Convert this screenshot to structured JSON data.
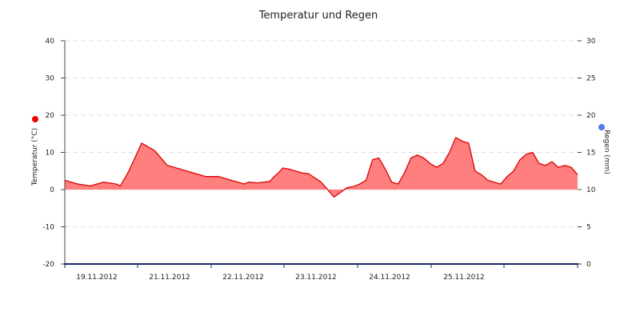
{
  "chart_data": {
    "type": "area",
    "title": "Temperatur und Regen",
    "x_type": "date",
    "x_tick_labels": [
      "19.11.2012",
      "21.11.2012",
      "22.11.2012",
      "23.11.2012",
      "24.11.2012",
      "25.11.2012"
    ],
    "y_left": {
      "label": "Temperatur (°C)",
      "range": [
        -20,
        40
      ],
      "ticks": [
        -20,
        -10,
        0,
        10,
        20,
        30,
        40
      ]
    },
    "y_right": {
      "label": "Regen (mm)",
      "range": [
        0,
        30
      ],
      "ticks": [
        0,
        5,
        10,
        15,
        20,
        25,
        30
      ]
    },
    "grid": true,
    "colors": {
      "temperature_line": "#dd0000",
      "temperature_fill": "#ff7f7f",
      "temperature_marker": "#ee0000",
      "rain_marker": "#4d7ee8",
      "x_axis": "#1a2766",
      "grid": "#dddddd"
    },
    "series": [
      {
        "axis": "left",
        "x": [
          "2012-11-18 12:00",
          "2012-11-18 18:00",
          "2012-11-19 00:00",
          "2012-11-19 06:00",
          "2012-11-19 12:00",
          "2012-11-19 14:00",
          "2012-11-19 18:00",
          "2012-11-20 00:00",
          "2012-11-20 06:00",
          "2012-11-20 12:00",
          "2012-11-20 18:00",
          "2012-11-21 00:00",
          "2012-11-21 06:00",
          "2012-11-21 12:00",
          "2012-11-21 18:00",
          "2012-11-22 00:00",
          "2012-11-22 02:00",
          "2012-11-22 06:00",
          "2012-11-22 12:00",
          "2012-11-22 14:00",
          "2012-11-22 16:00",
          "2012-11-22 18:00",
          "2012-11-22 21:00",
          "2012-11-23 00:00",
          "2012-11-23 03:00",
          "2012-11-23 06:00",
          "2012-11-23 12:00",
          "2012-11-23 18:00",
          "2012-11-24 00:00",
          "2012-11-24 03:00",
          "2012-11-24 06:00",
          "2012-11-24 09:00",
          "2012-11-24 12:00",
          "2012-11-24 15:00",
          "2012-11-24 18:00",
          "2012-11-24 21:00",
          "2012-11-25 00:00",
          "2012-11-25 03:00",
          "2012-11-25 06:00",
          "2012-11-25 09:00",
          "2012-11-25 12:00",
          "2012-11-25 15:00",
          "2012-11-25 18:00",
          "2012-11-25 21:00",
          "2012-11-26 00:00",
          "2012-11-26 03:00",
          "2012-11-26 06:00",
          "2012-11-26 09:00",
          "2012-11-26 12:00",
          "2012-11-26 15:00",
          "2012-11-26 18:00",
          "2012-11-26 21:00",
          "2012-11-27 00:00",
          "2012-11-27 03:00",
          "2012-11-27 06:00",
          "2012-11-27 09:00",
          "2012-11-27 12:00",
          "2012-11-27 15:00",
          "2012-11-27 18:00",
          "2012-11-27 21:00",
          "2012-11-28 00:00",
          "2012-11-28 03:00",
          "2012-11-28 06:00",
          "2012-11-28 09:00",
          "2012-11-28 12:00"
        ],
        "values": [
          2.5,
          1.5,
          1.0,
          2.0,
          1.5,
          1.0,
          5.0,
          12.5,
          10.5,
          6.5,
          5.5,
          4.5,
          3.5,
          3.5,
          2.5,
          1.5,
          2.0,
          1.8,
          2.2,
          3.5,
          4.5,
          5.8,
          5.5,
          5.0,
          4.5,
          4.3,
          2.0,
          -2.0,
          0.5,
          0.8,
          1.5,
          2.5,
          8.0,
          8.5,
          5.5,
          2.0,
          1.5,
          4.5,
          8.5,
          9.3,
          8.5,
          7.0,
          6.0,
          7.0,
          10.0,
          14.0,
          13.0,
          12.5,
          5.0,
          4.0,
          2.5,
          2.0,
          1.5,
          3.5,
          5.0,
          8.0,
          9.5,
          10.0,
          7.0,
          6.5,
          7.5,
          6.0,
          6.5,
          6.0,
          4.0
        ]
      }
    ],
    "markers": {
      "left_color": "#ee0000",
      "right_color": "#4d7ee8"
    }
  }
}
